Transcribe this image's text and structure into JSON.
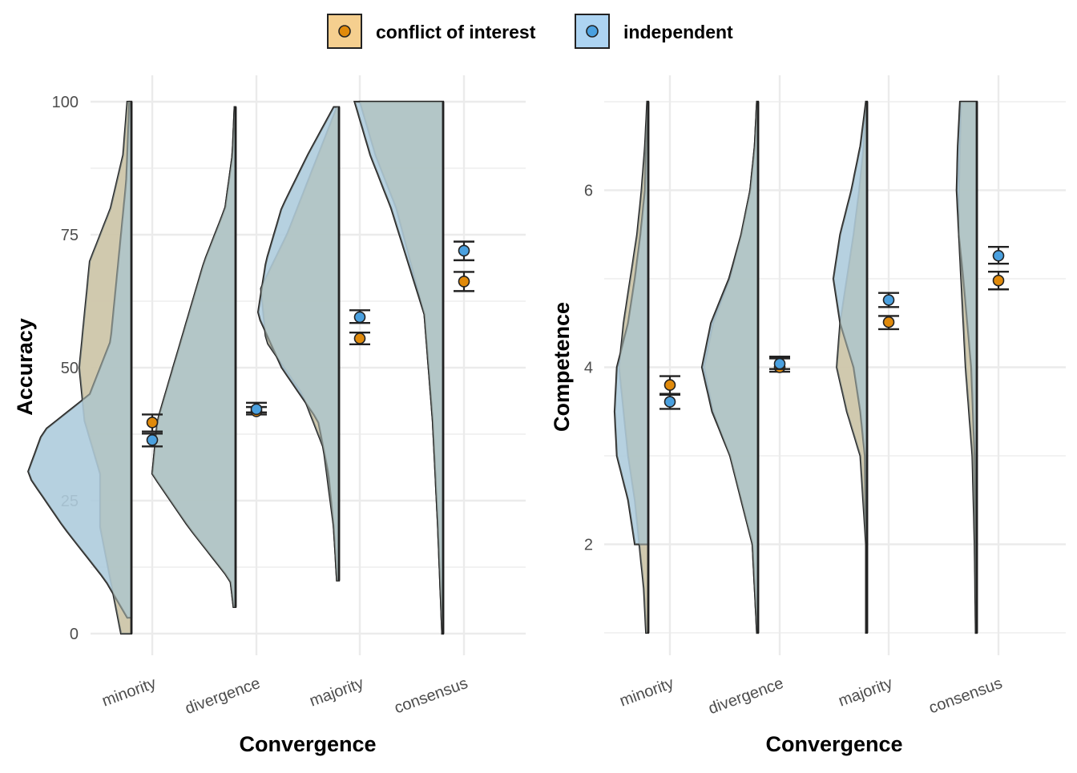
{
  "legend": {
    "position": "top-center",
    "items": [
      {
        "label": "conflict of interest",
        "key": "coi"
      },
      {
        "label": "independent",
        "key": "ind"
      }
    ]
  },
  "colors": {
    "coi_fill": "#f5cf8f",
    "coi_point": "#e08a0b",
    "ind_fill": "#add4f2",
    "ind_point": "#4aa0df",
    "overlap": "#b1c0ba",
    "outline": "#222222",
    "grid": "#ebebeb"
  },
  "chart_data": [
    {
      "type": "raincloud (half-violin + mean ± error bars)",
      "xlabel": "Convergence",
      "ylabel": "Accuracy",
      "ylim": [
        0,
        100
      ],
      "yticks": [
        0,
        25,
        50,
        75,
        100
      ],
      "categories": [
        "minority",
        "divergence",
        "majority",
        "consensus"
      ],
      "grid": true,
      "series": [
        {
          "name": "conflict of interest",
          "key": "coi",
          "mean": [
            39.7,
            41.8,
            55.5,
            66.2
          ],
          "lower": [
            38.0,
            41.2,
            54.4,
            64.4
          ],
          "upper": [
            41.2,
            42.6,
            56.6,
            68.0
          ]
        },
        {
          "name": "independent",
          "key": "ind",
          "mean": [
            36.4,
            42.2,
            59.5,
            72.0
          ],
          "lower": [
            35.2,
            41.6,
            58.4,
            70.2
          ],
          "upper": [
            37.6,
            43.4,
            60.8,
            73.7
          ]
        }
      ],
      "violins": [
        {
          "min": 0,
          "max": 100,
          "coi": [
            [
              0,
              0.1
            ],
            [
              5,
              0.15
            ],
            [
              10,
              0.2
            ],
            [
              20,
              0.3
            ],
            [
              30,
              0.3
            ],
            [
              40,
              0.45
            ],
            [
              50,
              0.5
            ],
            [
              60,
              0.45
            ],
            [
              70,
              0.4
            ],
            [
              80,
              0.2
            ],
            [
              90,
              0.08
            ],
            [
              100,
              0.04
            ]
          ],
          "ind": [
            [
              3,
              0.04
            ],
            [
              10,
              0.25
            ],
            [
              20,
              0.65
            ],
            [
              30,
              1.0
            ],
            [
              38,
              0.85
            ],
            [
              45,
              0.4
            ],
            [
              55,
              0.2
            ],
            [
              65,
              0.15
            ],
            [
              75,
              0.1
            ],
            [
              85,
              0.05
            ],
            [
              100,
              0.02
            ]
          ]
        },
        {
          "min": 5,
          "max": 99,
          "coi": [
            [
              5,
              0.02
            ],
            [
              10,
              0.05
            ],
            [
              20,
              0.45
            ],
            [
              30,
              0.8
            ],
            [
              40,
              0.75
            ],
            [
              50,
              0.6
            ],
            [
              60,
              0.45
            ],
            [
              70,
              0.3
            ],
            [
              80,
              0.1
            ],
            [
              90,
              0.03
            ],
            [
              99,
              0.01
            ]
          ],
          "ind": [
            [
              5,
              0.02
            ],
            [
              10,
              0.05
            ],
            [
              20,
              0.45
            ],
            [
              30,
              0.8
            ],
            [
              40,
              0.75
            ],
            [
              50,
              0.6
            ],
            [
              60,
              0.45
            ],
            [
              70,
              0.3
            ],
            [
              80,
              0.1
            ],
            [
              90,
              0.03
            ],
            [
              99,
              0.01
            ]
          ]
        },
        {
          "min": 10,
          "max": 99,
          "coi": [
            [
              10,
              0.02
            ],
            [
              20,
              0.05
            ],
            [
              35,
              0.15
            ],
            [
              45,
              0.35
            ],
            [
              55,
              0.7
            ],
            [
              65,
              0.75
            ],
            [
              75,
              0.5
            ],
            [
              85,
              0.3
            ],
            [
              95,
              0.1
            ],
            [
              99,
              0.02
            ]
          ],
          "ind": [
            [
              10,
              0.02
            ],
            [
              20,
              0.05
            ],
            [
              30,
              0.1
            ],
            [
              40,
              0.2
            ],
            [
              50,
              0.55
            ],
            [
              60,
              0.78
            ],
            [
              70,
              0.7
            ],
            [
              80,
              0.55
            ],
            [
              90,
              0.3
            ],
            [
              99,
              0.05
            ]
          ]
        },
        {
          "min": 0,
          "max": 100,
          "coi": [
            [
              0,
              0.01
            ],
            [
              10,
              0.03
            ],
            [
              20,
              0.05
            ],
            [
              40,
              0.1
            ],
            [
              60,
              0.18
            ],
            [
              80,
              0.45
            ],
            [
              90,
              0.65
            ],
            [
              100,
              0.8
            ]
          ],
          "ind": [
            [
              0,
              0.01
            ],
            [
              10,
              0.03
            ],
            [
              20,
              0.05
            ],
            [
              40,
              0.1
            ],
            [
              60,
              0.18
            ],
            [
              80,
              0.5
            ],
            [
              90,
              0.7
            ],
            [
              100,
              0.85
            ]
          ]
        }
      ]
    },
    {
      "type": "raincloud (half-violin + mean ± error bars)",
      "xlabel": "Convergence",
      "ylabel": "Competence",
      "ylim": [
        1,
        7
      ],
      "yticks": [
        2,
        4,
        6
      ],
      "categories": [
        "minority",
        "divergence",
        "majority",
        "consensus"
      ],
      "grid": true,
      "series": [
        {
          "name": "conflict of interest",
          "key": "coi",
          "mean": [
            3.8,
            4.0,
            4.51,
            4.98
          ],
          "lower": [
            3.7,
            3.95,
            4.43,
            4.88
          ],
          "upper": [
            3.9,
            4.1,
            4.58,
            5.08
          ]
        },
        {
          "name": "independent",
          "key": "ind",
          "mean": [
            3.61,
            4.04,
            4.76,
            5.26
          ],
          "lower": [
            3.53,
            3.98,
            4.68,
            5.17
          ],
          "upper": [
            3.69,
            4.12,
            4.84,
            5.36
          ]
        }
      ],
      "violins": [
        {
          "min": 1,
          "max": 7,
          "coi": [
            [
              1,
              0.02
            ],
            [
              1.5,
              0.04
            ],
            [
              2,
              0.08
            ],
            [
              2.5,
              0.12
            ],
            [
              3,
              0.18
            ],
            [
              3.5,
              0.22
            ],
            [
              4,
              0.26
            ],
            [
              4.5,
              0.22
            ],
            [
              5,
              0.16
            ],
            [
              5.5,
              0.1
            ],
            [
              6,
              0.06
            ],
            [
              6.5,
              0.03
            ],
            [
              7,
              0.01
            ]
          ],
          "ind": [
            [
              2,
              0.12
            ],
            [
              2.5,
              0.18
            ],
            [
              3,
              0.28
            ],
            [
              3.5,
              0.3
            ],
            [
              4,
              0.28
            ],
            [
              4.5,
              0.18
            ],
            [
              5,
              0.12
            ],
            [
              5.5,
              0.07
            ],
            [
              6,
              0.03
            ],
            [
              7,
              0.01
            ]
          ]
        },
        {
          "min": 1,
          "max": 7,
          "coi": [
            [
              1,
              0.01
            ],
            [
              2,
              0.05
            ],
            [
              3,
              0.25
            ],
            [
              3.5,
              0.4
            ],
            [
              4,
              0.48
            ],
            [
              4.5,
              0.4
            ],
            [
              5,
              0.25
            ],
            [
              5.5,
              0.15
            ],
            [
              6,
              0.07
            ],
            [
              6.5,
              0.03
            ],
            [
              7,
              0.01
            ]
          ],
          "ind": [
            [
              1,
              0.01
            ],
            [
              2,
              0.05
            ],
            [
              3,
              0.25
            ],
            [
              3.5,
              0.41
            ],
            [
              4,
              0.5
            ],
            [
              4.5,
              0.42
            ],
            [
              5,
              0.26
            ],
            [
              5.5,
              0.15
            ],
            [
              6,
              0.07
            ],
            [
              6.5,
              0.03
            ],
            [
              7,
              0.01
            ]
          ]
        },
        {
          "min": 1,
          "max": 7,
          "coi": [
            [
              1,
              0.01
            ],
            [
              2,
              0.01
            ],
            [
              3,
              0.06
            ],
            [
              3.5,
              0.18
            ],
            [
              4,
              0.27
            ],
            [
              4.5,
              0.24
            ],
            [
              5,
              0.18
            ],
            [
              5.5,
              0.12
            ],
            [
              6,
              0.07
            ],
            [
              6.5,
              0.03
            ],
            [
              7,
              0.01
            ]
          ],
          "ind": [
            [
              2,
              0.01
            ],
            [
              3,
              0.02
            ],
            [
              3.5,
              0.06
            ],
            [
              4,
              0.12
            ],
            [
              4.5,
              0.24
            ],
            [
              5,
              0.3
            ],
            [
              5.5,
              0.24
            ],
            [
              6,
              0.14
            ],
            [
              6.5,
              0.06
            ],
            [
              7,
              0.01
            ]
          ]
        },
        {
          "min": 1,
          "max": 7,
          "coi": [
            [
              1,
              0.01
            ],
            [
              2,
              0.02
            ],
            [
              3,
              0.04
            ],
            [
              4,
              0.1
            ],
            [
              5,
              0.14
            ],
            [
              5.5,
              0.16
            ],
            [
              6,
              0.16
            ],
            [
              6.5,
              0.15
            ],
            [
              7,
              0.14
            ]
          ],
          "ind": [
            [
              1,
              0.01
            ],
            [
              2,
              0.01
            ],
            [
              3,
              0.02
            ],
            [
              4,
              0.05
            ],
            [
              5,
              0.12
            ],
            [
              5.5,
              0.16
            ],
            [
              6,
              0.18
            ],
            [
              6.5,
              0.17
            ],
            [
              7,
              0.15
            ]
          ]
        }
      ]
    }
  ]
}
